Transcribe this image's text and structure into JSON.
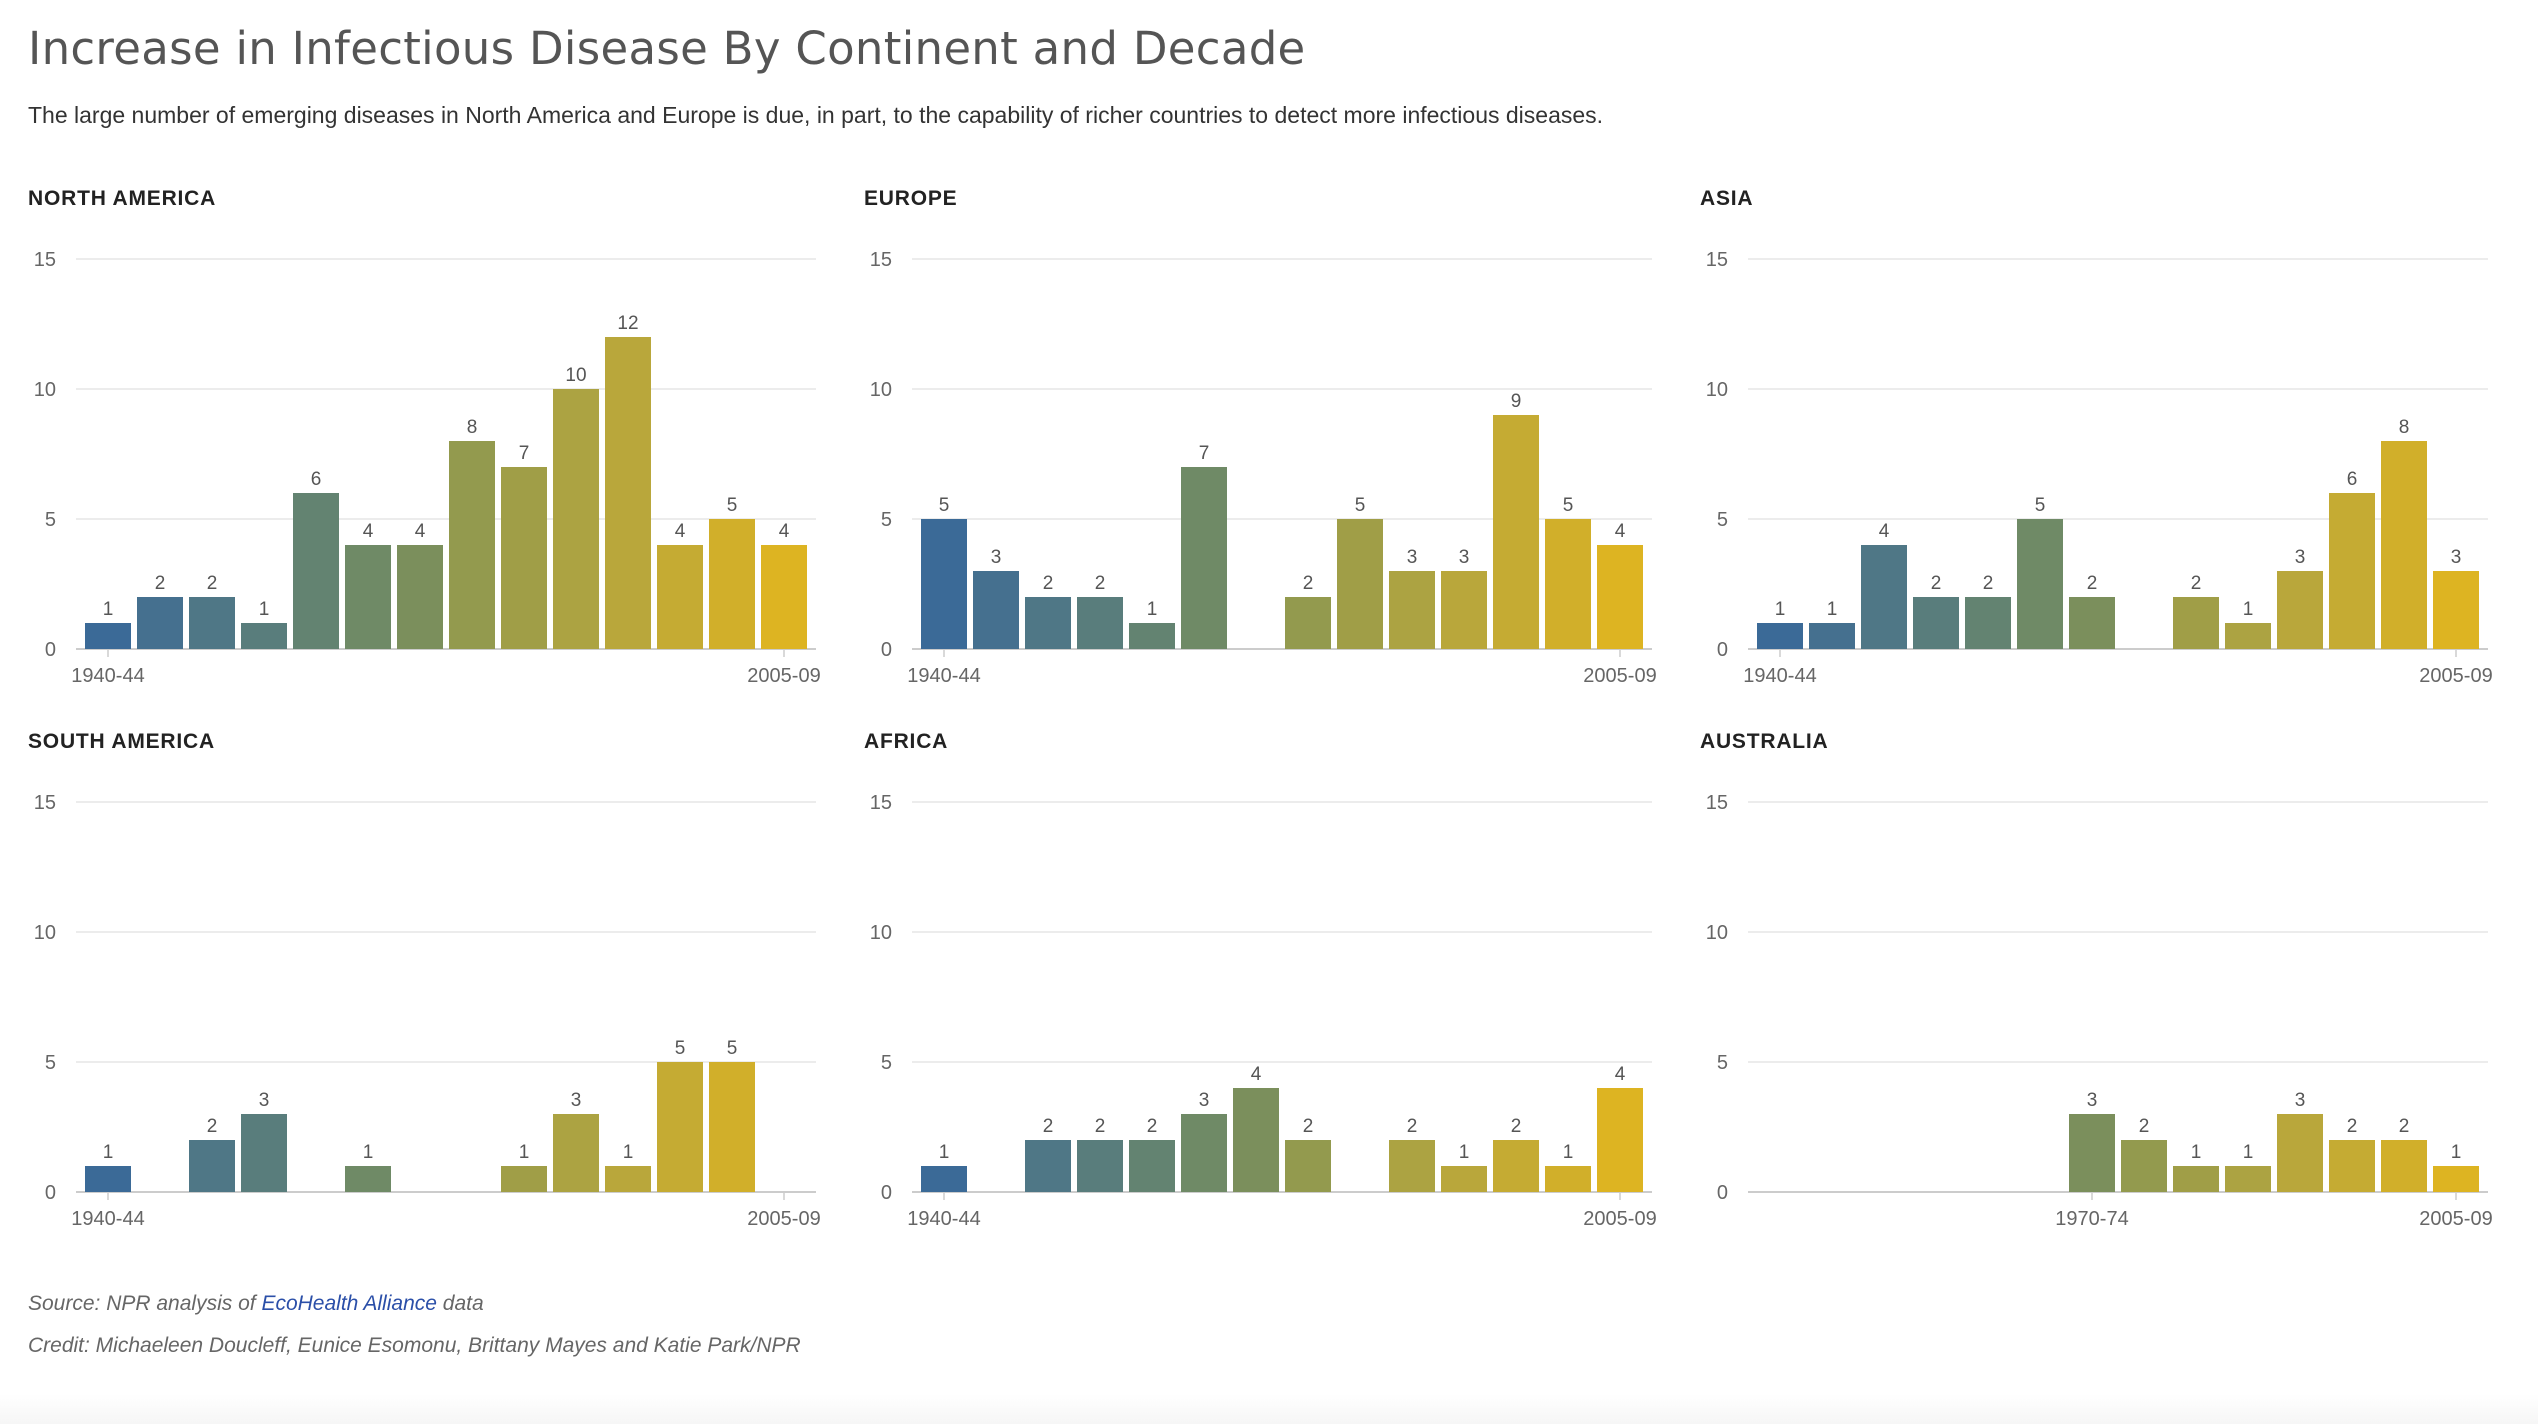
{
  "title": "Increase in Infectious Disease By Continent and Decade",
  "subtitle": "The large number of emerging diseases in North America and Europe is due, in part, to the capability of richer countries to detect more infectious diseases.",
  "source": {
    "prefix": "Source: NPR analysis of ",
    "link_text": "EcoHealth Alliance",
    "suffix": " data"
  },
  "credit": "Credit: Michaeleen Doucleff, Eunice Esomonu, Brittany Mayes and Katie Park/NPR",
  "colors": {
    "ramp": [
      "#3b6a97",
      "#45708f",
      "#4f7786",
      "#597d7c",
      "#638371",
      "#6f8a66",
      "#7b8f5c",
      "#879554",
      "#939a4e",
      "#a09e47",
      "#aca342",
      "#b9a73b",
      "#c5ab33",
      "#d1af2a",
      "#ddb422"
    ],
    "grid": "#e6e6e6",
    "axis": "#cccccc",
    "label": "#555555",
    "tick": "#666666"
  },
  "chart_data": [
    {
      "type": "bar",
      "title": "NORTH AMERICA",
      "categories": [
        "1940-44",
        "1945-49",
        "1950-54",
        "1955-59",
        "1960-64",
        "1965-69",
        "1970-74",
        "1975-79",
        "1980-84",
        "1985-89",
        "1990-94",
        "1995-99",
        "2000-04",
        "2005-09"
      ],
      "values": [
        1,
        2,
        2,
        1,
        6,
        4,
        4,
        8,
        7,
        10,
        12,
        4,
        5,
        4
      ],
      "x_tick_labels": [
        "1940-44",
        "2005-09"
      ],
      "yticks": [
        "0",
        "5",
        "10",
        "15"
      ],
      "ylim": [
        0,
        15
      ]
    },
    {
      "type": "bar",
      "title": "EUROPE",
      "categories": [
        "1940-44",
        "1945-49",
        "1950-54",
        "1955-59",
        "1960-64",
        "1965-69",
        "1970-74",
        "1975-79",
        "1980-84",
        "1985-89",
        "1990-94",
        "1995-99",
        "2000-04",
        "2005-09"
      ],
      "values": [
        5,
        3,
        2,
        2,
        1,
        7,
        0,
        2,
        5,
        3,
        3,
        9,
        5,
        4
      ],
      "x_tick_labels": [
        "1940-44",
        "2005-09"
      ],
      "yticks": [
        "0",
        "5",
        "10",
        "15"
      ],
      "ylim": [
        0,
        15
      ]
    },
    {
      "type": "bar",
      "title": "ASIA",
      "categories": [
        "1940-44",
        "1945-49",
        "1950-54",
        "1955-59",
        "1960-64",
        "1965-69",
        "1970-74",
        "1975-79",
        "1980-84",
        "1985-89",
        "1990-94",
        "1995-99",
        "2000-04",
        "2005-09"
      ],
      "values": [
        1,
        1,
        4,
        2,
        2,
        5,
        2,
        0,
        2,
        1,
        3,
        6,
        8,
        3
      ],
      "x_tick_labels": [
        "1940-44",
        "2005-09"
      ],
      "yticks": [
        "0",
        "5",
        "10",
        "15"
      ],
      "ylim": [
        0,
        15
      ]
    },
    {
      "type": "bar",
      "title": "SOUTH AMERICA",
      "categories": [
        "1940-44",
        "1945-49",
        "1950-54",
        "1955-59",
        "1960-64",
        "1965-69",
        "1970-74",
        "1975-79",
        "1980-84",
        "1985-89",
        "1990-94",
        "1995-99",
        "2000-04",
        "2005-09"
      ],
      "values": [
        1,
        0,
        2,
        3,
        0,
        1,
        0,
        0,
        1,
        3,
        1,
        5,
        5,
        0
      ],
      "x_tick_labels": [
        "1940-44",
        "2005-09"
      ],
      "yticks": [
        "0",
        "5",
        "10",
        "15"
      ],
      "ylim": [
        0,
        15
      ]
    },
    {
      "type": "bar",
      "title": "AFRICA",
      "categories": [
        "1940-44",
        "1945-49",
        "1950-54",
        "1955-59",
        "1960-64",
        "1965-69",
        "1970-74",
        "1975-79",
        "1980-84",
        "1985-89",
        "1990-94",
        "1995-99",
        "2000-04",
        "2005-09"
      ],
      "values": [
        1,
        0,
        2,
        2,
        2,
        3,
        4,
        2,
        0,
        2,
        1,
        2,
        1,
        4
      ],
      "x_tick_labels": [
        "1940-44",
        "2005-09"
      ],
      "yticks": [
        "0",
        "5",
        "10",
        "15"
      ],
      "ylim": [
        0,
        15
      ]
    },
    {
      "type": "bar",
      "title": "AUSTRALIA",
      "categories": [
        "1940-44",
        "1945-49",
        "1950-54",
        "1955-59",
        "1960-64",
        "1965-69",
        "1970-74",
        "1975-79",
        "1980-84",
        "1985-89",
        "1990-94",
        "1995-99",
        "2000-04",
        "2005-09"
      ],
      "values": [
        0,
        0,
        0,
        0,
        0,
        0,
        3,
        2,
        1,
        1,
        3,
        2,
        2,
        1
      ],
      "x_tick_labels": [
        "1970-74",
        "2005-09"
      ],
      "yticks": [
        "0",
        "5",
        "10",
        "15"
      ],
      "ylim": [
        0,
        15
      ]
    }
  ]
}
